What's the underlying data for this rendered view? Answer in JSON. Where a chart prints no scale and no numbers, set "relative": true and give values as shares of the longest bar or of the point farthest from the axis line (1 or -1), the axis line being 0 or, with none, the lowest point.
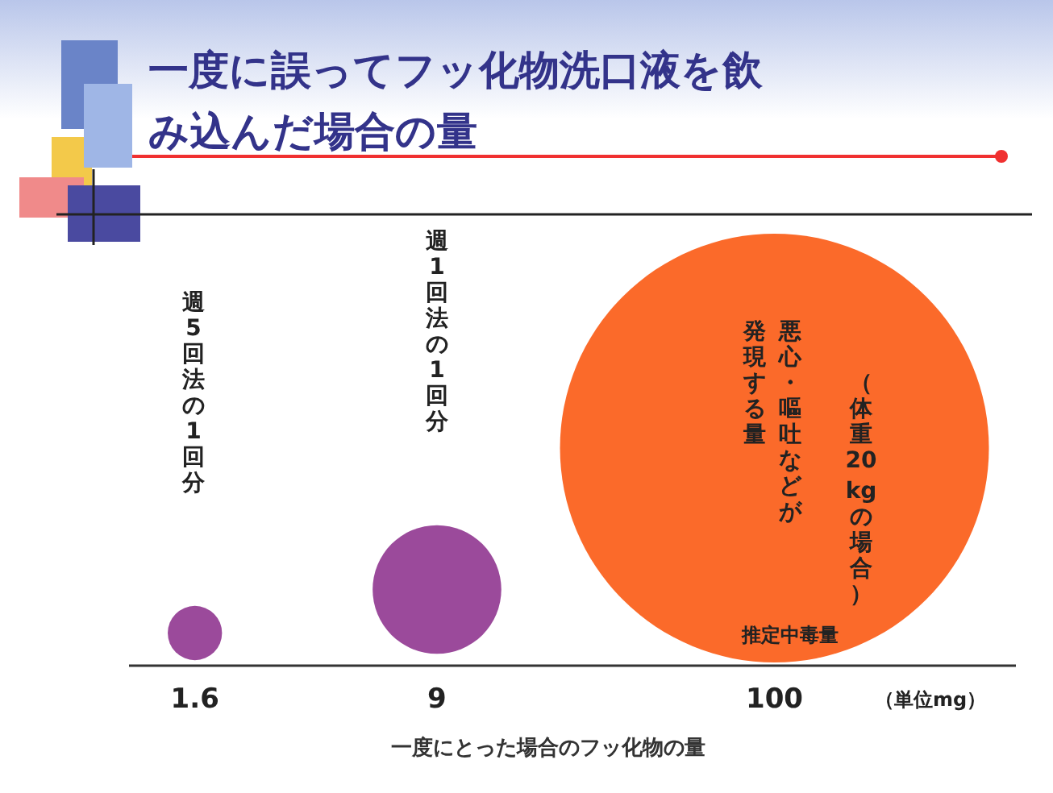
{
  "chart_data": {
    "type": "bubble",
    "title": "一度に誤ってフッ化物洗口液を飲み込んだ場合の量",
    "xlabel": "一度にとった場合のフッ化物の量",
    "x": [
      1.6,
      9,
      100
    ],
    "log": "x",
    "xlim": [
      1,
      560
    ],
    "xticks": [
      1.6,
      9,
      100
    ],
    "values": [
      0.15,
      0.35,
      1
    ],
    "relative": true,
    "sizes": [
      0.016,
      0.09,
      1
    ],
    "colors": [
      "#9b4a9b",
      "#9b4a9b",
      "#fb6a2a"
    ],
    "annotations": [
      "週5回法の1回分",
      "週1回法の1回分",
      "悪心・嘔吐などが",
      "発現する量",
      "（体重20 kgの場合）",
      "推定中毒量",
      "（単位mg）"
    ]
  }
}
